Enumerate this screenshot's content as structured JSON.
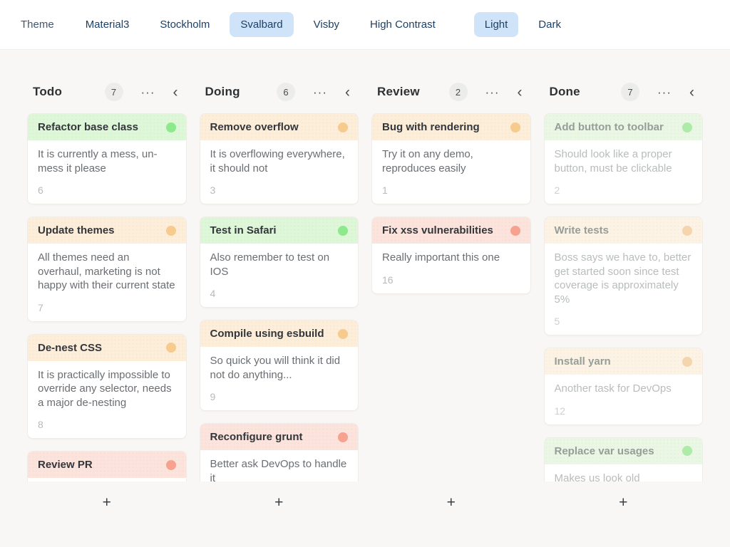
{
  "toolbar": {
    "label": "Theme",
    "themes": [
      {
        "label": "Material3",
        "active": false
      },
      {
        "label": "Stockholm",
        "active": false
      },
      {
        "label": "Svalbard",
        "active": true
      },
      {
        "label": "Visby",
        "active": false
      },
      {
        "label": "High Contrast",
        "active": false
      }
    ],
    "modes": [
      {
        "label": "Light",
        "active": true
      },
      {
        "label": "Dark",
        "active": false
      }
    ],
    "active_pill_color": "#cfe4f9",
    "text_color": "#1d4065"
  },
  "board": {
    "menu_icon": "···",
    "collapse_icon": "‹",
    "add_card_label": "+",
    "colors": {
      "green": {
        "header": "#def7d8",
        "dot": "#8ce98c"
      },
      "orange": {
        "header": "#fdeeda",
        "dot": "#f7ca8d"
      },
      "red": {
        "header": "#fce4dd",
        "dot": "#f7a28f"
      },
      "green_muted": {
        "header": "#e9f7e4",
        "dot": "#aeeaa8"
      },
      "orange_muted": {
        "header": "#fdf3e5",
        "dot": "#f5d5ae"
      },
      "red_muted": {
        "header": "#fbeae5",
        "dot": "#f5b9a9"
      }
    },
    "columns": [
      {
        "title": "Todo",
        "count": "7",
        "muted": false,
        "cards": [
          {
            "title": "Refactor base class",
            "description": "It is currently a mess, un-mess it please",
            "number": "6",
            "color": "green"
          },
          {
            "title": "Update themes",
            "description": "All themes need an overhaul, marketing is not happy with their current state",
            "number": "7",
            "color": "orange"
          },
          {
            "title": "De-nest CSS",
            "description": "It is practically impossible to override any selector, needs a major de-nesting",
            "number": "8",
            "color": "orange"
          },
          {
            "title": "Review PR",
            "description": "",
            "number": "",
            "color": "red"
          }
        ]
      },
      {
        "title": "Doing",
        "count": "6",
        "muted": false,
        "cards": [
          {
            "title": "Remove overflow",
            "description": "It is overflowing everywhere, it should not",
            "number": "3",
            "color": "orange"
          },
          {
            "title": "Test in Safari",
            "description": "Also remember to test on IOS",
            "number": "4",
            "color": "green"
          },
          {
            "title": "Compile using esbuild",
            "description": "So quick you will think it did not do anything...",
            "number": "9",
            "color": "orange"
          },
          {
            "title": "Reconfigure grunt",
            "description": "Better ask DevOps to handle it",
            "number": "",
            "color": "red"
          }
        ]
      },
      {
        "title": "Review",
        "count": "2",
        "muted": false,
        "cards": [
          {
            "title": "Bug with rendering",
            "description": "Try it on any demo, reproduces easily",
            "number": "1",
            "color": "orange"
          },
          {
            "title": "Fix xss vulnerabilities",
            "description": "Really important this one",
            "number": "16",
            "color": "red"
          }
        ]
      },
      {
        "title": "Done",
        "count": "7",
        "muted": true,
        "cards": [
          {
            "title": "Add button to toolbar",
            "description": "Should look like a proper button, must be clickable",
            "number": "2",
            "color": "green"
          },
          {
            "title": "Write tests",
            "description": "Boss says we have to, better get started soon since test coverage is approximately 5%",
            "number": "5",
            "color": "orange"
          },
          {
            "title": "Install yarn",
            "description": "Another task for DevOps",
            "number": "12",
            "color": "orange"
          },
          {
            "title": "Replace var usages",
            "description": "Makes us look old",
            "number": "",
            "color": "green"
          }
        ]
      }
    ]
  }
}
